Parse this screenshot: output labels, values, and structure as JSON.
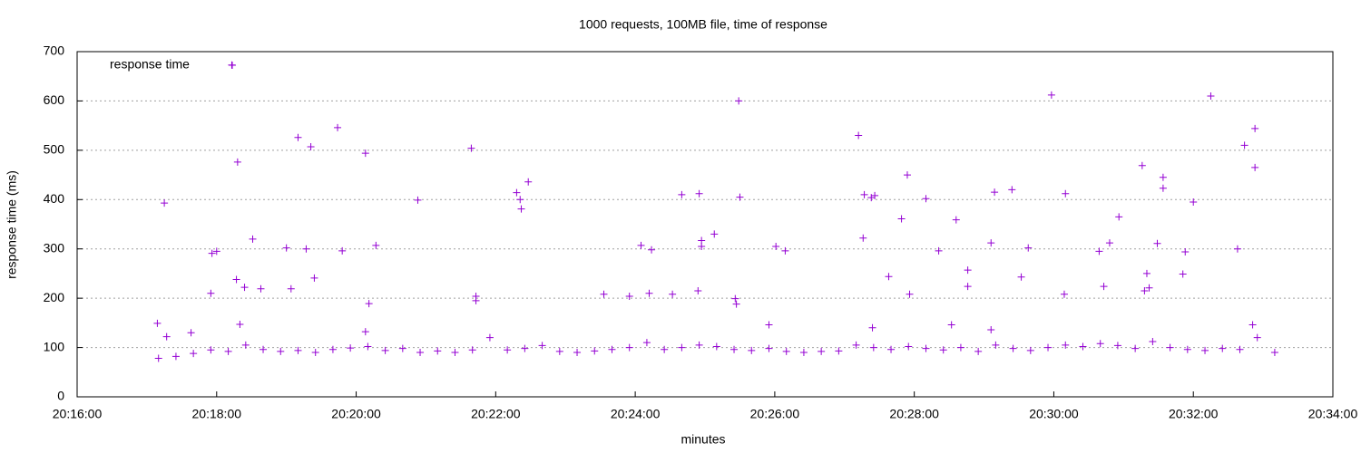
{
  "chart_data": {
    "type": "scatter",
    "title": "1000 requests, 100MB file, time of response",
    "x_label": "minutes",
    "y_label": "response time (ms)",
    "xlim": [
      "20:16:00",
      "20:34:00"
    ],
    "xticks": [
      "20:16:00",
      "20:18:00",
      "20:20:00",
      "20:22:00",
      "20:24:00",
      "20:26:00",
      "20:28:00",
      "20:30:00",
      "20:32:00",
      "20:34:00"
    ],
    "ylim": [
      0,
      700
    ],
    "yticks": [
      0,
      100,
      200,
      300,
      400,
      500,
      600,
      700
    ],
    "grid": true,
    "legend": "top-left",
    "series": [
      {
        "name": "response time",
        "color": "#9400d3",
        "x": [
          "20:17:09",
          "20:17:15",
          "20:17:17",
          "20:17:38",
          "20:17:55",
          "20:17:56",
          "20:18:00",
          "20:18:13",
          "20:18:17",
          "20:18:18",
          "20:18:20",
          "20:18:24",
          "20:18:31",
          "20:18:38",
          "20:19:00",
          "20:19:04",
          "20:19:10",
          "20:19:17",
          "20:19:21",
          "20:19:24",
          "20:19:44",
          "20:19:48",
          "20:20:08",
          "20:20:08",
          "20:20:11",
          "20:20:17",
          "20:20:53",
          "20:21:39",
          "20:21:43",
          "20:21:43",
          "20:22:18",
          "20:22:21",
          "20:22:22",
          "20:22:28",
          "20:23:33",
          "20:23:55",
          "20:24:05",
          "20:24:12",
          "20:24:14",
          "20:24:32",
          "20:24:40",
          "20:24:54",
          "20:24:55",
          "20:24:57",
          "20:24:57",
          "20:25:08",
          "20:25:26",
          "20:25:27",
          "20:25:29",
          "20:25:30",
          "20:25:55",
          "20:26:01",
          "20:26:09",
          "20:27:12",
          "20:27:16",
          "20:27:17",
          "20:27:23",
          "20:27:24",
          "20:27:26",
          "20:27:38",
          "20:27:49",
          "20:27:54",
          "20:27:56",
          "20:28:10",
          "20:28:21",
          "20:28:32",
          "20:28:36",
          "20:28:46",
          "20:28:46",
          "20:29:06",
          "20:29:06",
          "20:29:09",
          "20:29:24",
          "20:29:32",
          "20:29:38",
          "20:29:58",
          "20:30:09",
          "20:30:10",
          "20:30:39",
          "20:30:43",
          "20:30:48",
          "20:30:56",
          "20:31:16",
          "20:31:18",
          "20:31:20",
          "20:31:22",
          "20:31:29",
          "20:31:34",
          "20:31:34",
          "20:31:51",
          "20:31:53",
          "20:32:00",
          "20:32:15",
          "20:32:38",
          "20:32:44",
          "20:32:51",
          "20:32:53",
          "20:32:53",
          "20:17:10",
          "20:17:25",
          "20:17:40",
          "20:17:55",
          "20:18:10",
          "20:18:25",
          "20:18:40",
          "20:18:55",
          "20:19:10",
          "20:19:25",
          "20:19:40",
          "20:19:55",
          "20:20:10",
          "20:20:25",
          "20:20:40",
          "20:20:55",
          "20:21:10",
          "20:21:25",
          "20:21:40",
          "20:21:55",
          "20:22:10",
          "20:22:25",
          "20:22:40",
          "20:22:55",
          "20:23:10",
          "20:23:25",
          "20:23:40",
          "20:23:55",
          "20:24:10",
          "20:24:25",
          "20:24:40",
          "20:24:55",
          "20:25:10",
          "20:25:25",
          "20:25:40",
          "20:25:55",
          "20:26:10",
          "20:26:25",
          "20:26:40",
          "20:26:55",
          "20:27:10",
          "20:27:25",
          "20:27:40",
          "20:27:55",
          "20:28:10",
          "20:28:25",
          "20:28:40",
          "20:28:55",
          "20:29:10",
          "20:29:25",
          "20:29:40",
          "20:29:55",
          "20:30:10",
          "20:30:25",
          "20:30:40",
          "20:30:55",
          "20:31:10",
          "20:31:25",
          "20:31:40",
          "20:31:55",
          "20:32:10",
          "20:32:25",
          "20:32:40",
          "20:32:55",
          "20:33:10"
        ],
        "values": [
          149,
          393,
          122,
          130,
          210,
          291,
          295,
          673,
          238,
          476,
          147,
          222,
          320,
          219,
          302,
          219,
          526,
          300,
          507,
          241,
          546,
          296,
          494,
          132,
          189,
          307,
          399,
          504,
          204,
          195,
          414,
          400,
          381,
          436,
          208,
          204,
          307,
          210,
          298,
          208,
          410,
          215,
          412,
          317,
          305,
          330,
          199,
          188,
          600,
          405,
          146,
          305,
          296,
          530,
          322,
          410,
          404,
          140,
          408,
          244,
          361,
          450,
          208,
          402,
          296,
          146,
          359,
          257,
          224,
          136,
          312,
          415,
          420,
          243,
          302,
          612,
          208,
          412,
          295,
          224,
          312,
          365,
          469,
          215,
          250,
          221,
          311,
          445,
          423,
          249,
          294,
          395,
          610,
          300,
          510,
          146,
          544,
          465,
          78,
          82,
          88,
          95,
          92,
          105,
          96,
          92,
          94,
          90,
          96,
          99,
          102,
          94,
          98,
          90,
          93,
          90,
          95,
          120,
          95,
          98,
          104,
          92,
          90,
          93,
          96,
          100,
          110,
          96,
          100,
          105,
          102,
          96,
          94,
          98,
          92,
          90,
          92,
          93,
          105,
          100,
          96,
          102,
          98,
          95,
          100,
          92,
          105,
          98,
          94,
          100,
          105,
          102,
          108,
          104,
          98,
          112,
          100,
          96,
          94,
          98,
          96,
          120,
          90
        ]
      }
    ]
  }
}
